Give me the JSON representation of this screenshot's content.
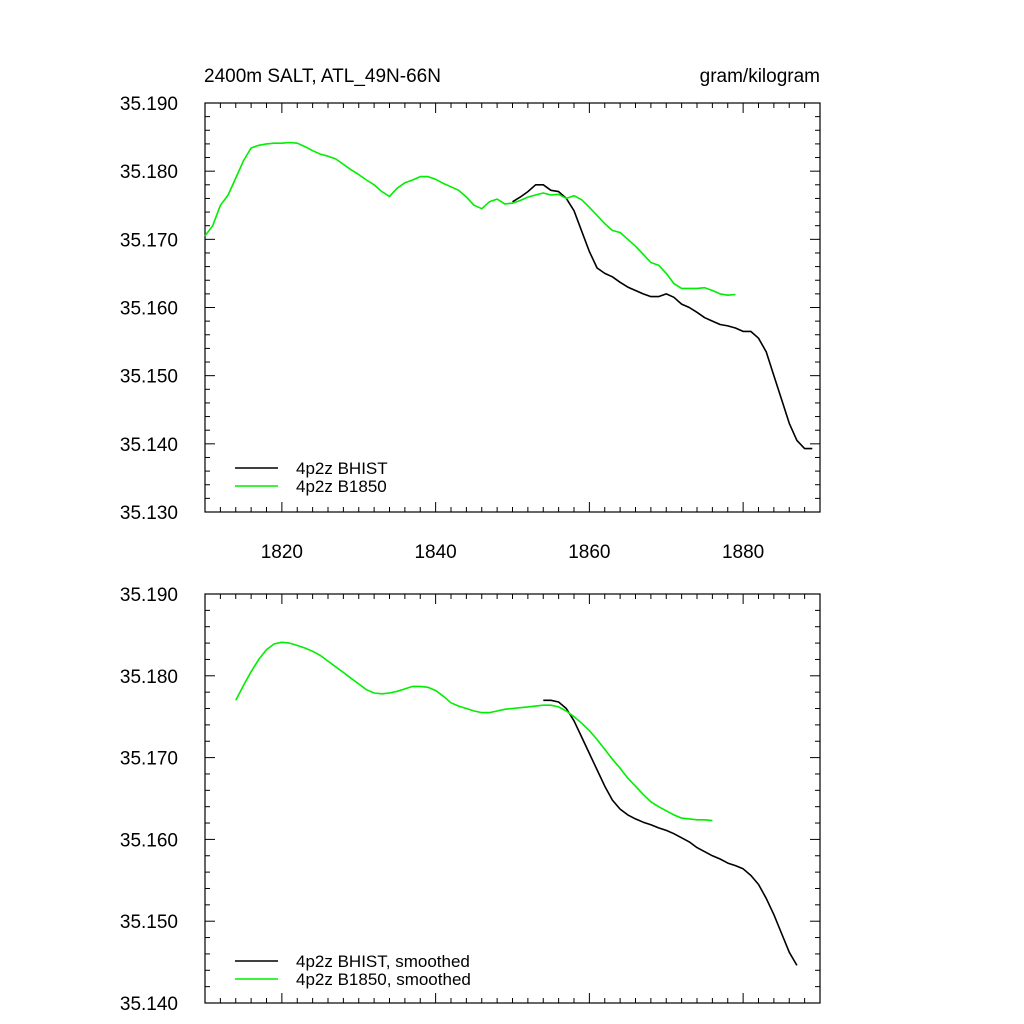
{
  "chart_data": [
    {
      "type": "line",
      "title_left": "2400m SALT, ATL_49N-66N",
      "title_right": "gram/kilogram",
      "xlim": [
        1810,
        1890
      ],
      "ylim": [
        35.13,
        35.19
      ],
      "xticks": [
        1820,
        1840,
        1860,
        1880
      ],
      "xtick_labels": [
        "1820",
        "1840",
        "1860",
        "1880"
      ],
      "yticks": [
        35.13,
        35.14,
        35.15,
        35.16,
        35.17,
        35.18,
        35.19
      ],
      "ytick_labels": [
        "35.130",
        "35.140",
        "35.150",
        "35.160",
        "35.170",
        "35.180",
        "35.190"
      ],
      "legend": "bottom-left",
      "series": [
        {
          "name": "4p2z BHIST",
          "color": "#000000",
          "x": [
            1850,
            1851,
            1852,
            1853,
            1854,
            1855,
            1856,
            1857,
            1858,
            1859,
            1860,
            1861,
            1862,
            1863,
            1864,
            1865,
            1866,
            1867,
            1868,
            1869,
            1870,
            1871,
            1872,
            1873,
            1874,
            1875,
            1876,
            1877,
            1878,
            1879,
            1880,
            1881,
            1882,
            1883,
            1884,
            1885,
            1886,
            1887,
            1888,
            1889
          ],
          "y": [
            35.1755,
            35.1762,
            35.177,
            35.178,
            35.178,
            35.1772,
            35.177,
            35.176,
            35.1742,
            35.1712,
            35.1682,
            35.1658,
            35.165,
            35.1645,
            35.1637,
            35.163,
            35.1625,
            35.162,
            35.1616,
            35.1616,
            35.162,
            35.1615,
            35.1605,
            35.16,
            35.1593,
            35.1585,
            35.158,
            35.1575,
            35.1573,
            35.157,
            35.1565,
            35.1565,
            35.1555,
            35.1535,
            35.15,
            35.1465,
            35.143,
            35.1405,
            35.1393,
            35.1393
          ]
        },
        {
          "name": "4p2z B1850",
          "color": "#00ee00",
          "x": [
            1810,
            1811,
            1812,
            1813,
            1814,
            1815,
            1816,
            1817,
            1818,
            1819,
            1820,
            1821,
            1822,
            1823,
            1824,
            1825,
            1826,
            1827,
            1828,
            1829,
            1830,
            1831,
            1832,
            1833,
            1834,
            1835,
            1836,
            1837,
            1838,
            1839,
            1840,
            1841,
            1842,
            1843,
            1844,
            1845,
            1846,
            1847,
            1848,
            1849,
            1850,
            1851,
            1852,
            1853,
            1854,
            1855,
            1856,
            1857,
            1858,
            1859,
            1860,
            1861,
            1862,
            1863,
            1864,
            1865,
            1866,
            1867,
            1868,
            1869,
            1870,
            1871,
            1872,
            1873,
            1874,
            1875,
            1876,
            1877,
            1878,
            1879
          ],
          "y": [
            35.1705,
            35.172,
            35.175,
            35.1765,
            35.179,
            35.1815,
            35.1834,
            35.1838,
            35.184,
            35.1841,
            35.1841,
            35.1842,
            35.1841,
            35.1836,
            35.183,
            35.1825,
            35.1822,
            35.1818,
            35.181,
            35.1802,
            35.1795,
            35.1787,
            35.178,
            35.177,
            35.1763,
            35.1775,
            35.1783,
            35.1787,
            35.1792,
            35.1792,
            35.1788,
            35.1782,
            35.1777,
            35.1772,
            35.1762,
            35.175,
            35.1745,
            35.1755,
            35.1759,
            35.1752,
            35.1753,
            35.1757,
            35.1762,
            35.1765,
            35.1768,
            35.1765,
            35.1766,
            35.176,
            35.1764,
            35.1758,
            35.1747,
            35.1735,
            35.1723,
            35.1713,
            35.171,
            35.17,
            35.169,
            35.1678,
            35.1666,
            35.1662,
            35.165,
            35.1635,
            35.1628,
            35.1628,
            35.1628,
            35.1629,
            35.1625,
            35.162,
            35.1618,
            35.1619
          ]
        }
      ]
    },
    {
      "type": "line",
      "xlim": [
        1810,
        1890
      ],
      "ylim": [
        35.14,
        35.19
      ],
      "xticks": [
        1820,
        1840,
        1860,
        1880
      ],
      "yticks": [
        35.14,
        35.15,
        35.16,
        35.17,
        35.18,
        35.19
      ],
      "ytick_labels": [
        "35.140",
        "35.150",
        "35.160",
        "35.170",
        "35.180",
        "35.190"
      ],
      "legend": "bottom-left",
      "series": [
        {
          "name": "4p2z BHIST, smoothed",
          "color": "#000000",
          "x": [
            1854,
            1855,
            1856,
            1857,
            1858,
            1859,
            1860,
            1861,
            1862,
            1863,
            1864,
            1865,
            1866,
            1867,
            1868,
            1869,
            1870,
            1871,
            1872,
            1873,
            1874,
            1875,
            1876,
            1877,
            1878,
            1879,
            1880,
            1881,
            1882,
            1883,
            1884,
            1885,
            1886,
            1887
          ],
          "y": [
            35.177,
            35.177,
            35.1768,
            35.176,
            35.1745,
            35.1725,
            35.1705,
            35.1685,
            35.1665,
            35.1648,
            35.1637,
            35.163,
            35.1625,
            35.1621,
            35.1618,
            35.1614,
            35.1611,
            35.1607,
            35.1602,
            35.1597,
            35.159,
            35.1585,
            35.158,
            35.1576,
            35.1571,
            35.1568,
            35.1564,
            35.1556,
            35.1545,
            35.1528,
            35.1508,
            35.1485,
            35.1462,
            35.1446
          ]
        },
        {
          "name": "4p2z B1850, smoothed",
          "color": "#00ee00",
          "x": [
            1814,
            1815,
            1816,
            1817,
            1818,
            1819,
            1820,
            1821,
            1822,
            1823,
            1824,
            1825,
            1826,
            1827,
            1828,
            1829,
            1830,
            1831,
            1832,
            1833,
            1834,
            1835,
            1836,
            1837,
            1838,
            1839,
            1840,
            1841,
            1842,
            1843,
            1844,
            1845,
            1846,
            1847,
            1848,
            1849,
            1850,
            1851,
            1852,
            1853,
            1854,
            1855,
            1856,
            1857,
            1858,
            1859,
            1860,
            1861,
            1862,
            1863,
            1864,
            1865,
            1866,
            1867,
            1868,
            1869,
            1870,
            1871,
            1872,
            1873,
            1874,
            1875,
            1876
          ],
          "y": [
            35.177,
            35.1788,
            35.1805,
            35.182,
            35.1832,
            35.1839,
            35.1841,
            35.184,
            35.1837,
            35.1834,
            35.183,
            35.1825,
            35.1818,
            35.1811,
            35.1804,
            35.1797,
            35.179,
            35.1783,
            35.1779,
            35.1778,
            35.1779,
            35.1781,
            35.1784,
            35.1787,
            35.1787,
            35.1786,
            35.1782,
            35.1775,
            35.1767,
            35.1763,
            35.176,
            35.1757,
            35.1755,
            35.1755,
            35.1757,
            35.1759,
            35.176,
            35.1761,
            35.1762,
            35.1763,
            35.1764,
            35.1764,
            35.1762,
            35.1757,
            35.175,
            35.1742,
            35.1733,
            35.1722,
            35.171,
            35.1698,
            35.1687,
            35.1675,
            35.1665,
            35.1655,
            35.1646,
            35.164,
            35.1635,
            35.163,
            35.1626,
            35.1625,
            35.1624,
            35.1624,
            35.1623
          ]
        }
      ]
    }
  ]
}
